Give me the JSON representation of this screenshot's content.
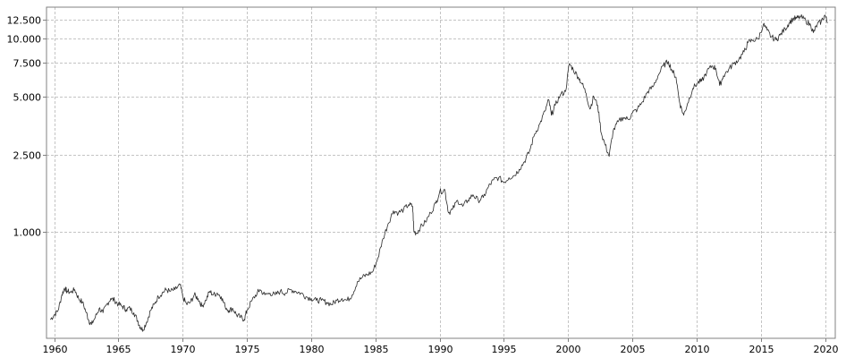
{
  "chart_data": {
    "type": "line",
    "title": "",
    "xlabel": "",
    "ylabel": "",
    "y_scale": "log",
    "xlim": [
      1959.4,
      2020.8
    ],
    "ylim": [
      280,
      14500
    ],
    "grid": true,
    "legend": "none",
    "x_ticks": [
      {
        "value": 1960,
        "label": "1960"
      },
      {
        "value": 1965,
        "label": "1965"
      },
      {
        "value": 1970,
        "label": "1970"
      },
      {
        "value": 1975,
        "label": "1975"
      },
      {
        "value": 1980,
        "label": "1980"
      },
      {
        "value": 1985,
        "label": "1985"
      },
      {
        "value": 1990,
        "label": "1990"
      },
      {
        "value": 1995,
        "label": "1995"
      },
      {
        "value": 2000,
        "label": "2000"
      },
      {
        "value": 2005,
        "label": "2005"
      },
      {
        "value": 2010,
        "label": "2010"
      },
      {
        "value": 2015,
        "label": "2015"
      },
      {
        "value": 2020,
        "label": "2020"
      }
    ],
    "y_ticks": [
      {
        "value": 1000,
        "label": "1.000"
      },
      {
        "value": 2500,
        "label": "2.500"
      },
      {
        "value": 5000,
        "label": "5.000"
      },
      {
        "value": 7500,
        "label": "7.500"
      },
      {
        "value": 10000,
        "label": "10.000"
      },
      {
        "value": 12500,
        "label": "12.500"
      }
    ],
    "series": [
      {
        "values": [
          [
            1959.7,
            350
          ],
          [
            1960.0,
            370
          ],
          [
            1960.3,
            390
          ],
          [
            1960.6,
            470
          ],
          [
            1960.8,
            510
          ],
          [
            1961.0,
            490
          ],
          [
            1961.3,
            485
          ],
          [
            1961.6,
            500
          ],
          [
            1961.9,
            450
          ],
          [
            1962.2,
            430
          ],
          [
            1962.5,
            380
          ],
          [
            1962.7,
            345
          ],
          [
            1962.9,
            330
          ],
          [
            1963.2,
            360
          ],
          [
            1963.5,
            400
          ],
          [
            1963.8,
            380
          ],
          [
            1964.1,
            420
          ],
          [
            1964.4,
            450
          ],
          [
            1964.7,
            440
          ],
          [
            1965.0,
            420
          ],
          [
            1965.3,
            410
          ],
          [
            1965.6,
            395
          ],
          [
            1965.9,
            400
          ],
          [
            1966.2,
            380
          ],
          [
            1966.5,
            345
          ],
          [
            1966.7,
            320
          ],
          [
            1966.9,
            310
          ],
          [
            1967.2,
            340
          ],
          [
            1967.5,
            390
          ],
          [
            1967.8,
            420
          ],
          [
            1968.1,
            460
          ],
          [
            1968.4,
            480
          ],
          [
            1968.7,
            500
          ],
          [
            1969.0,
            490
          ],
          [
            1969.4,
            500
          ],
          [
            1969.8,
            530
          ],
          [
            1970.0,
            460
          ],
          [
            1970.3,
            420
          ],
          [
            1970.6,
            430
          ],
          [
            1970.9,
            470
          ],
          [
            1971.2,
            450
          ],
          [
            1971.5,
            410
          ],
          [
            1971.8,
            440
          ],
          [
            1972.1,
            490
          ],
          [
            1972.4,
            470
          ],
          [
            1972.7,
            480
          ],
          [
            1973.0,
            460
          ],
          [
            1973.3,
            410
          ],
          [
            1973.6,
            390
          ],
          [
            1973.9,
            400
          ],
          [
            1974.2,
            370
          ],
          [
            1974.5,
            360
          ],
          [
            1974.8,
            350
          ],
          [
            1975.0,
            390
          ],
          [
            1975.4,
            440
          ],
          [
            1975.8,
            480
          ],
          [
            1976.0,
            500
          ],
          [
            1976.4,
            470
          ],
          [
            1976.8,
            480
          ],
          [
            1977.2,
            470
          ],
          [
            1977.6,
            490
          ],
          [
            1978.0,
            480
          ],
          [
            1978.4,
            500
          ],
          [
            1978.8,
            490
          ],
          [
            1979.2,
            480
          ],
          [
            1979.6,
            460
          ],
          [
            1980.0,
            450
          ],
          [
            1980.4,
            440
          ],
          [
            1980.8,
            440
          ],
          [
            1981.2,
            430
          ],
          [
            1981.6,
            420
          ],
          [
            1982.0,
            440
          ],
          [
            1982.4,
            450
          ],
          [
            1982.8,
            440
          ],
          [
            1983.2,
            470
          ],
          [
            1983.6,
            550
          ],
          [
            1984.0,
            580
          ],
          [
            1984.4,
            600
          ],
          [
            1984.8,
            620
          ],
          [
            1985.2,
            730
          ],
          [
            1985.6,
            920
          ],
          [
            1986.0,
            1100
          ],
          [
            1986.4,
            1280
          ],
          [
            1986.8,
            1250
          ],
          [
            1987.2,
            1300
          ],
          [
            1987.6,
            1380
          ],
          [
            1987.9,
            1350
          ],
          [
            1988.0,
            1000
          ],
          [
            1988.2,
            980
          ],
          [
            1988.5,
            1050
          ],
          [
            1988.9,
            1120
          ],
          [
            1989.3,
            1250
          ],
          [
            1989.7,
            1400
          ],
          [
            1990.0,
            1600
          ],
          [
            1990.4,
            1650
          ],
          [
            1990.7,
            1250
          ],
          [
            1991.0,
            1300
          ],
          [
            1991.4,
            1450
          ],
          [
            1991.8,
            1350
          ],
          [
            1992.2,
            1450
          ],
          [
            1992.6,
            1550
          ],
          [
            1993.0,
            1450
          ],
          [
            1993.4,
            1500
          ],
          [
            1993.8,
            1700
          ],
          [
            1994.2,
            1850
          ],
          [
            1994.6,
            1900
          ],
          [
            1995.0,
            1800
          ],
          [
            1995.4,
            1900
          ],
          [
            1995.8,
            1950
          ],
          [
            1996.2,
            2100
          ],
          [
            1996.6,
            2300
          ],
          [
            1997.0,
            2600
          ],
          [
            1997.4,
            3200
          ],
          [
            1997.8,
            3600
          ],
          [
            1998.2,
            4200
          ],
          [
            1998.5,
            4800
          ],
          [
            1998.7,
            4000
          ],
          [
            1999.0,
            4500
          ],
          [
            1999.4,
            5100
          ],
          [
            1999.8,
            5300
          ],
          [
            2000.1,
            7400
          ],
          [
            2000.4,
            6900
          ],
          [
            2000.8,
            6300
          ],
          [
            2001.1,
            5800
          ],
          [
            2001.4,
            5200
          ],
          [
            2001.7,
            4300
          ],
          [
            2002.0,
            5000
          ],
          [
            2002.3,
            4500
          ],
          [
            2002.6,
            3200
          ],
          [
            2002.9,
            2800
          ],
          [
            2003.2,
            2450
          ],
          [
            2003.5,
            3300
          ],
          [
            2003.9,
            3700
          ],
          [
            2004.3,
            3900
          ],
          [
            2004.7,
            3800
          ],
          [
            2005.0,
            4100
          ],
          [
            2005.4,
            4300
          ],
          [
            2005.8,
            4700
          ],
          [
            2006.2,
            5300
          ],
          [
            2006.6,
            5600
          ],
          [
            2007.0,
            6400
          ],
          [
            2007.4,
            7200
          ],
          [
            2007.8,
            7600
          ],
          [
            2008.1,
            6800
          ],
          [
            2008.4,
            6300
          ],
          [
            2008.7,
            4600
          ],
          [
            2009.0,
            4000
          ],
          [
            2009.3,
            4600
          ],
          [
            2009.7,
            5500
          ],
          [
            2010.1,
            5900
          ],
          [
            2010.4,
            6000
          ],
          [
            2010.8,
            6700
          ],
          [
            2011.2,
            7200
          ],
          [
            2011.5,
            7000
          ],
          [
            2011.8,
            5700
          ],
          [
            2012.1,
            6400
          ],
          [
            2012.5,
            6900
          ],
          [
            2012.9,
            7400
          ],
          [
            2013.3,
            7800
          ],
          [
            2013.7,
            8500
          ],
          [
            2014.0,
            9500
          ],
          [
            2014.4,
            9800
          ],
          [
            2014.8,
            9900
          ],
          [
            2015.2,
            11800
          ],
          [
            2015.5,
            11000
          ],
          [
            2015.8,
            10200
          ],
          [
            2016.2,
            9800
          ],
          [
            2016.5,
            10400
          ],
          [
            2016.9,
            11200
          ],
          [
            2017.2,
            12000
          ],
          [
            2017.5,
            12600
          ],
          [
            2017.8,
            12700
          ],
          [
            2018.1,
            12900
          ],
          [
            2018.5,
            12400
          ],
          [
            2018.9,
            11600
          ],
          [
            2019.1,
            10700
          ],
          [
            2019.4,
            11800
          ],
          [
            2019.7,
            12200
          ],
          [
            2020.0,
            13200
          ],
          [
            2020.2,
            12000
          ]
        ]
      }
    ]
  }
}
